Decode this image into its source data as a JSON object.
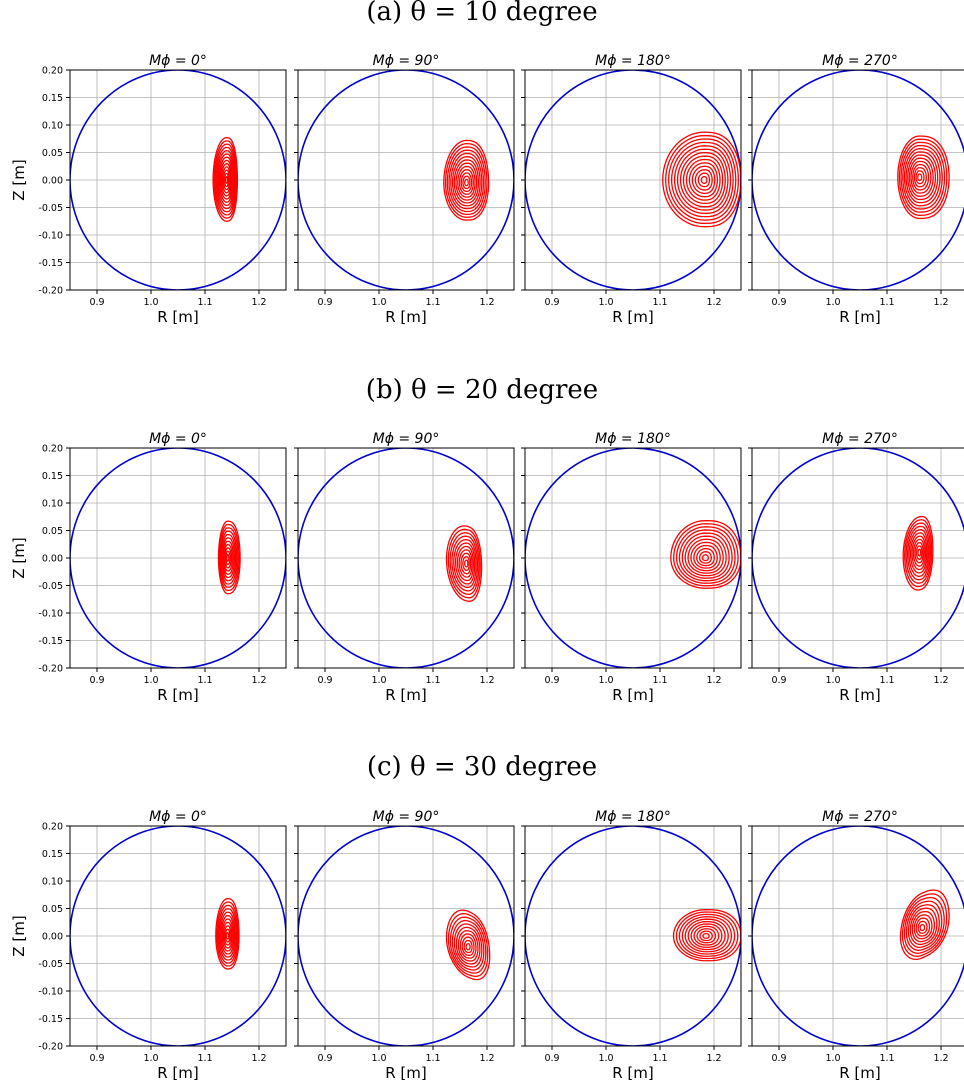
{
  "chart_data": {
    "type": "contour-grid",
    "xlabel": "R [m]",
    "ylabel": "Z [m]",
    "xlim": [
      0.85,
      1.25
    ],
    "ylim": [
      -0.2,
      0.2
    ],
    "xticks": [
      "0.9",
      "1.0",
      "1.1",
      "1.2"
    ],
    "yticks": [
      "0.20",
      "0.15",
      "0.10",
      "0.05",
      "0.00",
      "-0.05",
      "-0.10",
      "-0.15",
      "-0.20"
    ],
    "grid": true,
    "vessel_boundary": {
      "center_R": 1.05,
      "center_Z": 0.0,
      "radius": 0.2,
      "color": "#0000cc"
    },
    "contour_color": "#ff0000",
    "column_titles": [
      "Mϕ = 0°",
      "Mϕ = 90°",
      "Mϕ = 180°",
      "Mϕ = 270°"
    ],
    "rows": [
      {
        "label": "(a) θ = 10 degree",
        "panels": [
          {
            "phi": 0,
            "center": [
              1.14,
              0.0
            ],
            "R_range": [
              1.115,
              1.16
            ],
            "Z_range": [
              -0.075,
              0.077
            ],
            "rings": 13
          },
          {
            "phi": 90,
            "center": [
              1.162,
              -0.005
            ],
            "R_range": [
              1.12,
              1.203
            ],
            "Z_range": [
              -0.073,
              0.072
            ],
            "rings": 13
          },
          {
            "phi": 180,
            "center": [
              1.182,
              0.0
            ],
            "R_range": [
              1.105,
              1.25
            ],
            "Z_range": [
              -0.085,
              0.087
            ],
            "rings": 14
          },
          {
            "phi": 270,
            "center": [
              1.16,
              0.005
            ],
            "R_range": [
              1.12,
              1.215
            ],
            "Z_range": [
              -0.07,
              0.08
            ],
            "rings": 13
          }
        ]
      },
      {
        "label": "(b) θ = 20 degree",
        "panels": [
          {
            "phi": 0,
            "center": [
              1.142,
              0.0
            ],
            "R_range": [
              1.125,
              1.165
            ],
            "Z_range": [
              -0.065,
              0.067
            ],
            "rings": 11
          },
          {
            "phi": 90,
            "center": [
              1.162,
              -0.01
            ],
            "R_range": [
              1.125,
              1.19
            ],
            "Z_range": [
              -0.078,
              0.058
            ],
            "rings": 11
          },
          {
            "phi": 180,
            "center": [
              1.184,
              0.0
            ],
            "R_range": [
              1.12,
              1.25
            ],
            "Z_range": [
              -0.055,
              0.068
            ],
            "rings": 12
          },
          {
            "phi": 270,
            "center": [
              1.16,
              0.01
            ],
            "R_range": [
              1.13,
              1.185
            ],
            "Z_range": [
              -0.058,
              0.075
            ],
            "rings": 11
          }
        ]
      },
      {
        "label": "(c) θ = 30 degree",
        "panels": [
          {
            "phi": 0,
            "center": [
              1.142,
              0.0
            ],
            "R_range": [
              1.12,
              1.163
            ],
            "Z_range": [
              -0.06,
              0.068
            ],
            "rings": 11
          },
          {
            "phi": 90,
            "center": [
              1.165,
              -0.02
            ],
            "R_range": [
              1.125,
              1.205
            ],
            "Z_range": [
              -0.075,
              0.045
            ],
            "rings": 11
          },
          {
            "phi": 180,
            "center": [
              1.185,
              0.0
            ],
            "R_range": [
              1.125,
              1.25
            ],
            "Z_range": [
              -0.045,
              0.048
            ],
            "rings": 11
          },
          {
            "phi": 270,
            "center": [
              1.165,
              0.015
            ],
            "R_range": [
              1.125,
              1.215
            ],
            "Z_range": [
              -0.04,
              0.078
            ],
            "rings": 11
          }
        ]
      }
    ]
  }
}
